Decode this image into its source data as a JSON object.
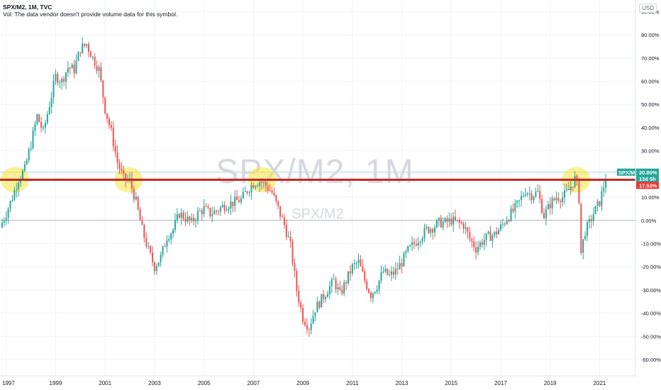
{
  "header": {
    "title": "SPX/M2, 1M, TVC",
    "volume_note": "Vol: The data vendor doesn't provide volume data for this symbol.",
    "currency": "USD"
  },
  "watermark": {
    "main": "SPX/M2, 1M",
    "sub": "SPX/M2"
  },
  "colors": {
    "up": "#26a69a",
    "down": "#ef5350",
    "support_line": "#c62828",
    "highlight": "#f5e63c",
    "last_price_tag": "#26a69a",
    "level_tag": "#e53935"
  },
  "chart_data": {
    "type": "candlestick",
    "interval": "1M",
    "y_axis": {
      "unit": "%",
      "range": [
        -67,
        95
      ],
      "ticks": [
        "90.00%",
        "80.00%",
        "70.00%",
        "60.00%",
        "50.00%",
        "40.00%",
        "30.00%",
        "20.00%",
        "10.00%",
        "0.00%",
        "-10.00%",
        "-20.00%",
        "-30.00%",
        "-40.00%",
        "-50.00%",
        "-60.00%"
      ],
      "tick_values": [
        90,
        80,
        70,
        60,
        50,
        40,
        30,
        20,
        10,
        0,
        -10,
        -20,
        -30,
        -40,
        -50,
        -60
      ]
    },
    "x_axis": {
      "range": [
        1996.75,
        2022.45
      ],
      "ticks": [
        "1997",
        "1999",
        "2001",
        "2003",
        "2005",
        "2007",
        "2009",
        "2011",
        "2013",
        "2015",
        "2017",
        "2019",
        "2021"
      ],
      "tick_values": [
        1997,
        1999,
        2001,
        2003,
        2005,
        2007,
        2009,
        2011,
        2013,
        2015,
        2017,
        2019,
        2021
      ]
    },
    "path_points": [
      [
        1996.75,
        -3
      ],
      [
        1997.0,
        3
      ],
      [
        1997.25,
        10
      ],
      [
        1997.5,
        18
      ],
      [
        1997.75,
        22
      ],
      [
        1998.0,
        33
      ],
      [
        1998.25,
        45
      ],
      [
        1998.5,
        38
      ],
      [
        1998.75,
        50
      ],
      [
        1999.0,
        62
      ],
      [
        1999.25,
        60
      ],
      [
        1999.5,
        66
      ],
      [
        1999.75,
        65
      ],
      [
        2000.0,
        74
      ],
      [
        2000.25,
        76
      ],
      [
        2000.5,
        70
      ],
      [
        2000.75,
        65
      ],
      [
        2001.0,
        48
      ],
      [
        2001.25,
        38
      ],
      [
        2001.5,
        25
      ],
      [
        2001.75,
        18
      ],
      [
        2002.0,
        17
      ],
      [
        2002.25,
        8
      ],
      [
        2002.5,
        -4
      ],
      [
        2002.75,
        -13
      ],
      [
        2003.0,
        -20
      ],
      [
        2003.25,
        -16
      ],
      [
        2003.5,
        -7
      ],
      [
        2003.75,
        -4
      ],
      [
        2004.0,
        3
      ],
      [
        2004.25,
        1
      ],
      [
        2004.5,
        -1
      ],
      [
        2004.75,
        3
      ],
      [
        2005.0,
        5
      ],
      [
        2005.25,
        3
      ],
      [
        2005.5,
        4
      ],
      [
        2005.75,
        6
      ],
      [
        2006.0,
        7
      ],
      [
        2006.25,
        8
      ],
      [
        2006.5,
        9
      ],
      [
        2006.75,
        13
      ],
      [
        2007.0,
        16
      ],
      [
        2007.25,
        17
      ],
      [
        2007.5,
        15
      ],
      [
        2007.75,
        12
      ],
      [
        2008.0,
        5
      ],
      [
        2008.25,
        -2
      ],
      [
        2008.5,
        -11
      ],
      [
        2008.75,
        -30
      ],
      [
        2009.0,
        -42
      ],
      [
        2009.25,
        -46
      ],
      [
        2009.5,
        -38
      ],
      [
        2009.75,
        -34
      ],
      [
        2010.0,
        -30
      ],
      [
        2010.25,
        -26
      ],
      [
        2010.5,
        -32
      ],
      [
        2010.75,
        -26
      ],
      [
        2011.0,
        -20
      ],
      [
        2011.25,
        -18
      ],
      [
        2011.5,
        -26
      ],
      [
        2011.75,
        -32
      ],
      [
        2012.0,
        -28
      ],
      [
        2012.25,
        -22
      ],
      [
        2012.5,
        -24
      ],
      [
        2012.75,
        -22
      ],
      [
        2013.0,
        -18
      ],
      [
        2013.25,
        -13
      ],
      [
        2013.5,
        -10
      ],
      [
        2013.75,
        -7
      ],
      [
        2014.0,
        -4
      ],
      [
        2014.25,
        -3
      ],
      [
        2014.5,
        -1
      ],
      [
        2014.75,
        -1
      ],
      [
        2015.0,
        0
      ],
      [
        2015.25,
        -1
      ],
      [
        2015.5,
        -2
      ],
      [
        2015.75,
        -8
      ],
      [
        2016.0,
        -12
      ],
      [
        2016.25,
        -9
      ],
      [
        2016.5,
        -7
      ],
      [
        2016.75,
        -6
      ],
      [
        2017.0,
        -3
      ],
      [
        2017.25,
        1
      ],
      [
        2017.5,
        4
      ],
      [
        2017.75,
        8
      ],
      [
        2018.0,
        13
      ],
      [
        2018.25,
        11
      ],
      [
        2018.5,
        12
      ],
      [
        2018.75,
        2
      ],
      [
        2019.0,
        7
      ],
      [
        2019.25,
        10
      ],
      [
        2019.5,
        10
      ],
      [
        2019.75,
        13
      ],
      [
        2020.0,
        18
      ],
      [
        2020.15,
        14
      ],
      [
        2020.25,
        -14
      ],
      [
        2020.4,
        -5
      ],
      [
        2020.6,
        -1
      ],
      [
        2020.75,
        3
      ],
      [
        2021.0,
        8
      ],
      [
        2021.15,
        14
      ],
      [
        2021.3,
        20.8
      ]
    ],
    "last_value_label": "20.80%",
    "countdown_label": "13d 5h",
    "horizontal_level": 17.53,
    "horizontal_level_label": "17.53%",
    "highlighted_periods": [
      1997.35,
      2001.95,
      2007.35,
      2020.05
    ]
  }
}
